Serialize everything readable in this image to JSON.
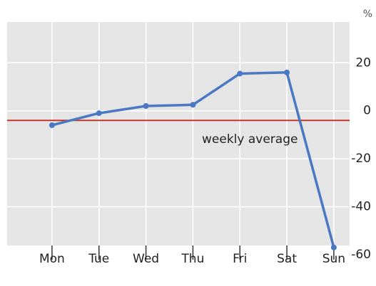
{
  "chart_data": {
    "type": "line",
    "y_unit": "%",
    "categories": [
      "Mon",
      "Tue",
      "Wed",
      "Thu",
      "Fri",
      "Sat",
      "Sun"
    ],
    "series": [
      {
        "color": "#4a78c2",
        "values": [
          -6,
          -1,
          2,
          2.5,
          15.5,
          16,
          -57
        ]
      }
    ],
    "reference": {
      "label": "weekly average",
      "value": -4,
      "color": "#c0392b"
    },
    "ylim": [
      -60,
      37
    ],
    "yticks": [
      20,
      0,
      -20,
      -40,
      -60
    ],
    "grid": true
  }
}
